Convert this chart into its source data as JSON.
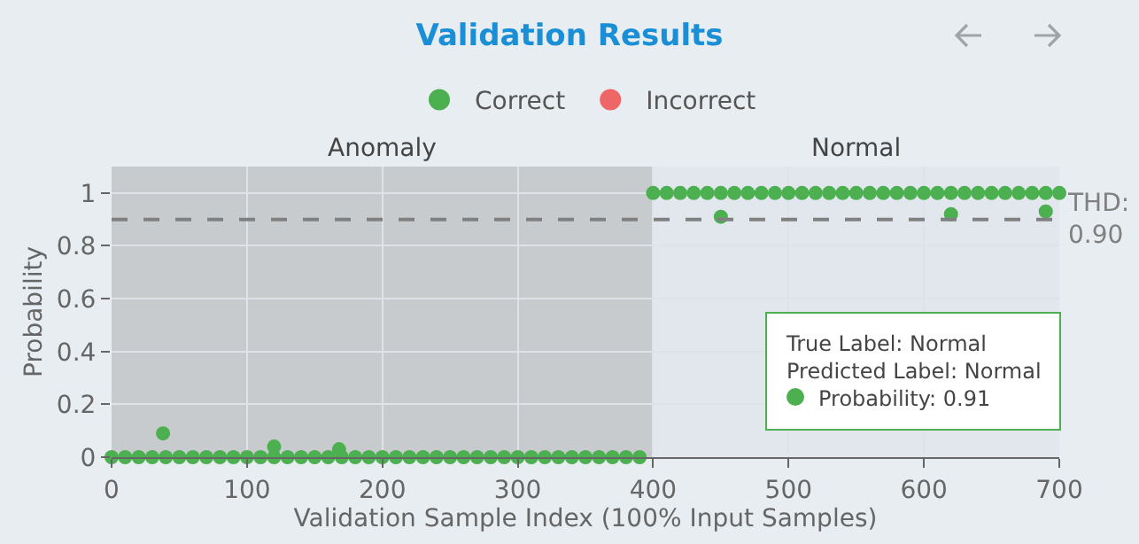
{
  "chart_data": {
    "type": "scatter",
    "title": "Validation Results",
    "xlabel": "Validation Sample Index (100% Input Samples)",
    "ylabel": "Probability",
    "xlim": [
      0,
      700
    ],
    "ylim": [
      0,
      1.1
    ],
    "xticks": [
      0,
      100,
      200,
      300,
      400,
      500,
      600,
      700
    ],
    "yticks": [
      0,
      0.2,
      0.4,
      0.6,
      0.8,
      1
    ],
    "grid": true,
    "legend": "top",
    "marker": "circle",
    "series": [
      {
        "name": "Correct",
        "color": "#4caf50",
        "x": [
          0,
          10,
          20,
          30,
          40,
          50,
          60,
          70,
          80,
          90,
          100,
          110,
          120,
          130,
          140,
          150,
          160,
          170,
          180,
          190,
          200,
          210,
          220,
          230,
          240,
          250,
          260,
          270,
          280,
          290,
          300,
          310,
          320,
          330,
          340,
          350,
          360,
          370,
          380,
          390,
          400,
          410,
          420,
          430,
          440,
          450,
          460,
          470,
          480,
          490,
          500,
          510,
          520,
          530,
          540,
          550,
          560,
          570,
          580,
          590,
          600,
          610,
          620,
          630,
          640,
          650,
          660,
          670,
          680,
          690,
          700,
          38,
          120,
          168,
          450,
          620,
          690
        ],
        "values": [
          0,
          0,
          0,
          0,
          0,
          0,
          0,
          0,
          0,
          0,
          0,
          0,
          0,
          0,
          0,
          0,
          0,
          0,
          0,
          0,
          0,
          0,
          0,
          0,
          0,
          0,
          0,
          0,
          0,
          0,
          0,
          0,
          0,
          0,
          0,
          0,
          0,
          0,
          0,
          0,
          1,
          1,
          1,
          1,
          1,
          1,
          1,
          1,
          1,
          1,
          1,
          1,
          1,
          1,
          1,
          1,
          1,
          1,
          1,
          1,
          1,
          1,
          1,
          1,
          1,
          1,
          1,
          1,
          1,
          1,
          1,
          0.09,
          0.04,
          0.03,
          0.91,
          0.92,
          0.93
        ]
      },
      {
        "name": "Incorrect",
        "color": "#ee6666"
      }
    ],
    "ref_lines": [
      {
        "axis": "y",
        "value": 0.9,
        "label": "THD:\n0.90",
        "color": "#808080",
        "line_style": "dashed"
      }
    ],
    "bands": [
      {
        "axis": "x",
        "from": 0,
        "to": 400,
        "label": "Anomaly",
        "color": "#c8cbcd"
      },
      {
        "axis": "x",
        "from": 400,
        "to": 700,
        "label": "Normal",
        "color": "#e1e7ec"
      }
    ],
    "annotations": [
      "True Label: Normal\nPredicted Label: Normal\nProbability: 0.91"
    ]
  }
}
